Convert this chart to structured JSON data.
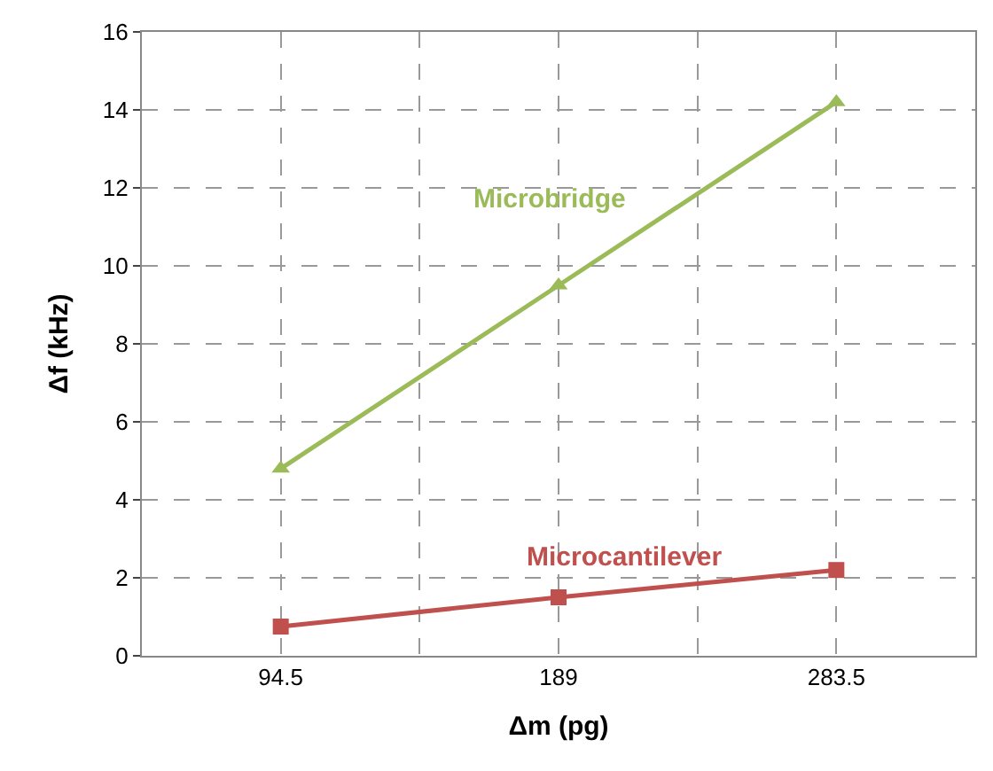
{
  "chart_data": {
    "type": "line",
    "xlabel": "Δm (pg)",
    "ylabel": "Δf (kHz)",
    "x": [
      94.5,
      189,
      283.5
    ],
    "series": [
      {
        "name": "Microbridge",
        "color": "#9bbb59",
        "marker": "triangle",
        "values": [
          4.8,
          9.5,
          14.2
        ]
      },
      {
        "name": "Microcantilever",
        "color": "#c0504d",
        "marker": "square",
        "values": [
          0.75,
          1.5,
          2.2
        ]
      }
    ],
    "xlim": [
      47.25,
      330.75
    ],
    "xticks": [
      94.5,
      {
        "value": 141.75,
        "label": null
      },
      189,
      {
        "value": 236.25,
        "label": null
      },
      283.5
    ],
    "ylim": [
      0,
      16
    ],
    "yticks": [
      0,
      2,
      4,
      6,
      8,
      10,
      12,
      14,
      16
    ],
    "grid": true,
    "legend": false,
    "line_style": "solid"
  }
}
